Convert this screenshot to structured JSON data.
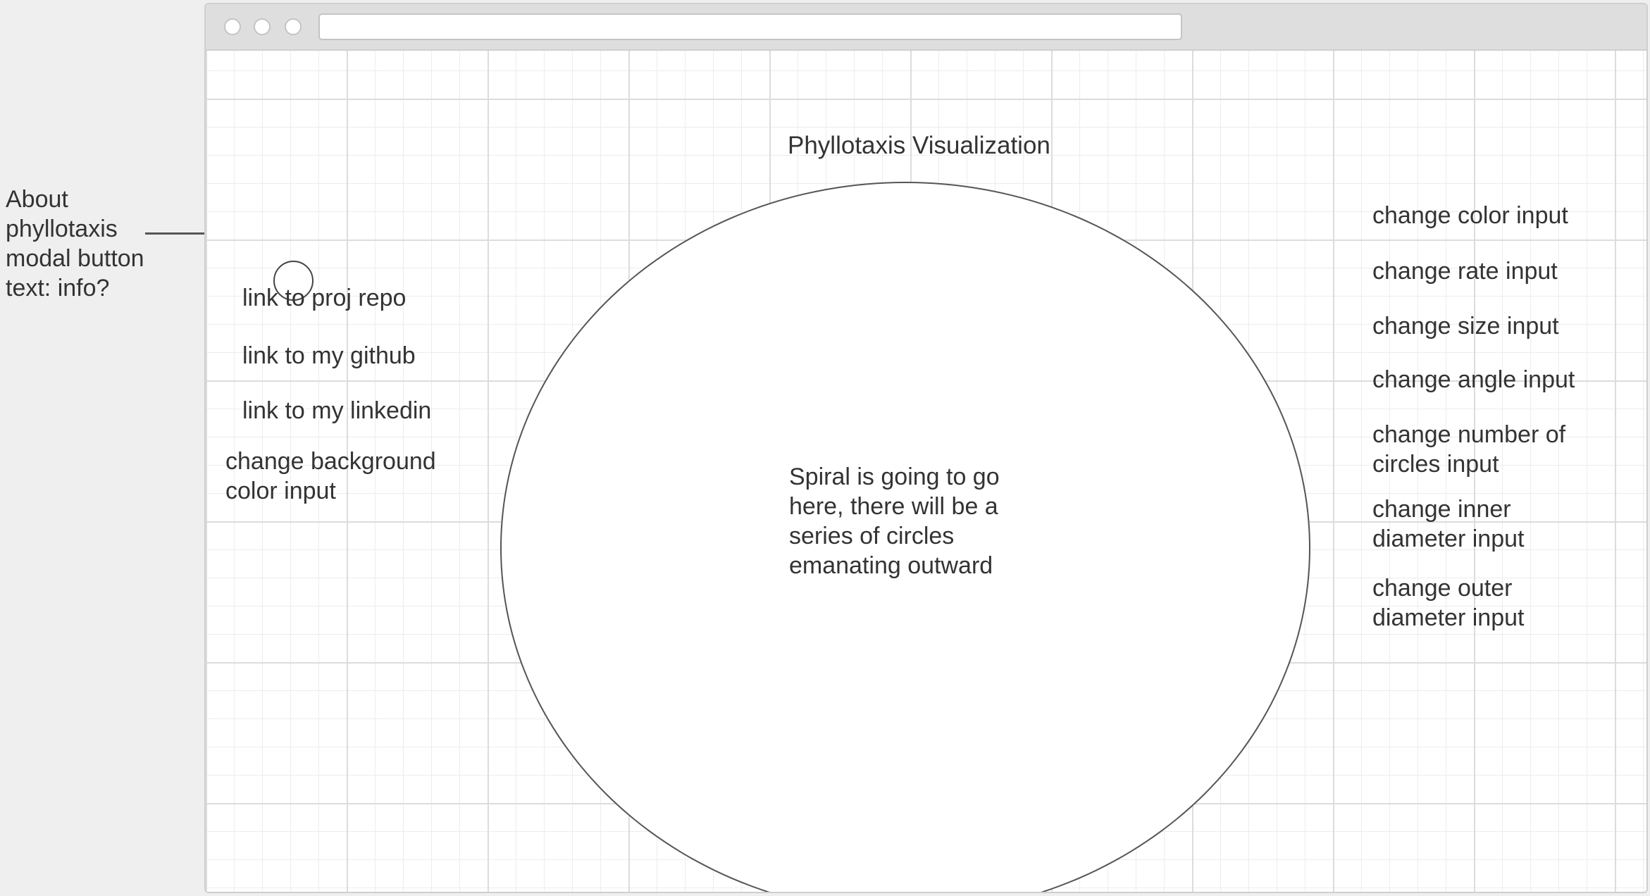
{
  "annotation": {
    "line1": "About",
    "line2": "phyllotaxis",
    "line3": "modal button",
    "line4": "text: info?"
  },
  "page": {
    "title": "Phyllotaxis Visualization",
    "spiral_text": {
      "line1": "Spiral is going to go",
      "line2": "here, there will be a",
      "line3": "series of circles",
      "line4": "emanating outward"
    }
  },
  "left_panel": {
    "repo_link": "link to proj repo",
    "github_link": "link to my github",
    "linkedin_link": "link to my linkedin",
    "background_input": {
      "line1": "change background",
      "line2": "color input"
    }
  },
  "right_panel": {
    "color_input": "change color input",
    "rate_input": "change rate input",
    "size_input": "change size input",
    "angle_input": "change angle input",
    "number_input": {
      "line1": "change number of",
      "line2": "circles input"
    },
    "inner_diameter_input": {
      "line1": "change inner",
      "line2": "diameter input"
    },
    "outer_diameter_input": {
      "line1": "change outer",
      "line2": "diameter input"
    }
  }
}
